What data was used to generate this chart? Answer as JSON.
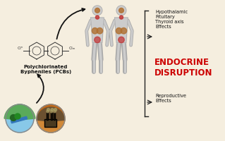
{
  "bg_color": "#f5eedf",
  "title_text": "ENDOCRINE\nDISRUPTION",
  "title_color": "#cc0000",
  "title_fontsize": 8.5,
  "pcb_label": "Polychlorinated\nBypheniles (PCBs)",
  "pcb_label_fontsize": 5.0,
  "effect1_text": "Hypothalamic\nPituitary\nThyroid axis\nEffects",
  "effect2_text": "Reproductive\nEffects",
  "effect_fontsize": 4.8,
  "effect_color": "#111111",
  "cl_n_label": "Clⁿ",
  "cl_m_label": "Clₘ",
  "body_color": "#cccccc",
  "body_outline": "#aaaaaa",
  "gland_brown": "#b07030",
  "gland_red": "#c03030",
  "arrow_color": "#111111"
}
